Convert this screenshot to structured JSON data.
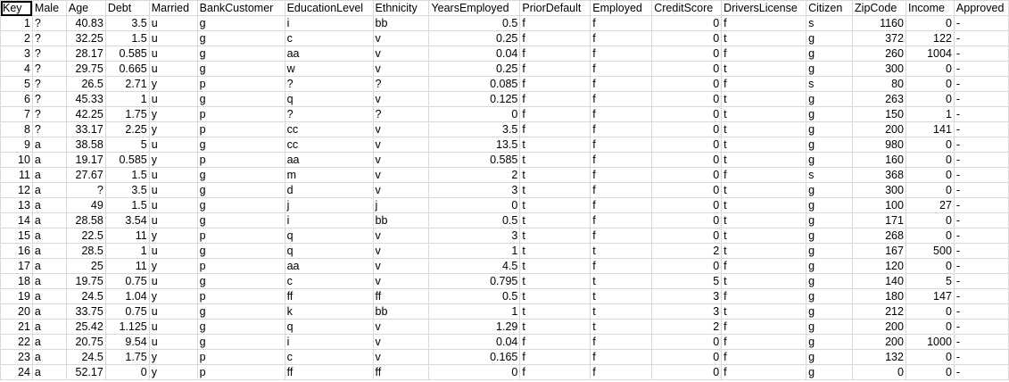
{
  "sheet": {
    "headers": [
      "Key",
      "Male",
      "Age",
      "Debt",
      "Married",
      "BankCustomer",
      "EducationLevel",
      "Ethnicity",
      "YearsEmployed",
      "PriorDefault",
      "Employed",
      "CreditScore",
      "DriversLicense",
      "Citizen",
      "ZipCode",
      "Income",
      "Approved"
    ],
    "numeric_columns": [
      0,
      2,
      3,
      8,
      11,
      14,
      15
    ],
    "rows": [
      [
        "1",
        "?",
        "40.83",
        "3.5",
        "u",
        "g",
        "i",
        "bb",
        "0.5",
        "f",
        "f",
        "0",
        "f",
        "s",
        "1160",
        "0",
        "-"
      ],
      [
        "2",
        "?",
        "32.25",
        "1.5",
        "u",
        "g",
        "c",
        "v",
        "0.25",
        "f",
        "f",
        "0",
        "t",
        "g",
        "372",
        "122",
        "-"
      ],
      [
        "3",
        "?",
        "28.17",
        "0.585",
        "u",
        "g",
        "aa",
        "v",
        "0.04",
        "f",
        "f",
        "0",
        "f",
        "g",
        "260",
        "1004",
        "-"
      ],
      [
        "4",
        "?",
        "29.75",
        "0.665",
        "u",
        "g",
        "w",
        "v",
        "0.25",
        "f",
        "f",
        "0",
        "t",
        "g",
        "300",
        "0",
        "-"
      ],
      [
        "5",
        "?",
        "26.5",
        "2.71",
        "y",
        "p",
        "?",
        "?",
        "0.085",
        "f",
        "f",
        "0",
        "f",
        "s",
        "80",
        "0",
        "-"
      ],
      [
        "6",
        "?",
        "45.33",
        "1",
        "u",
        "g",
        "q",
        "v",
        "0.125",
        "f",
        "f",
        "0",
        "t",
        "g",
        "263",
        "0",
        "-"
      ],
      [
        "7",
        "?",
        "42.25",
        "1.75",
        "y",
        "p",
        "?",
        "?",
        "0",
        "f",
        "f",
        "0",
        "t",
        "g",
        "150",
        "1",
        "-"
      ],
      [
        "8",
        "?",
        "33.17",
        "2.25",
        "y",
        "p",
        "cc",
        "v",
        "3.5",
        "f",
        "f",
        "0",
        "t",
        "g",
        "200",
        "141",
        "-"
      ],
      [
        "9",
        "a",
        "38.58",
        "5",
        "u",
        "g",
        "cc",
        "v",
        "13.5",
        "t",
        "f",
        "0",
        "t",
        "g",
        "980",
        "0",
        "-"
      ],
      [
        "10",
        "a",
        "19.17",
        "0.585",
        "y",
        "p",
        "aa",
        "v",
        "0.585",
        "t",
        "f",
        "0",
        "t",
        "g",
        "160",
        "0",
        "-"
      ],
      [
        "11",
        "a",
        "27.67",
        "1.5",
        "u",
        "g",
        "m",
        "v",
        "2",
        "t",
        "f",
        "0",
        "f",
        "s",
        "368",
        "0",
        "-"
      ],
      [
        "12",
        "a",
        "?",
        "3.5",
        "u",
        "g",
        "d",
        "v",
        "3",
        "t",
        "f",
        "0",
        "t",
        "g",
        "300",
        "0",
        "-"
      ],
      [
        "13",
        "a",
        "49",
        "1.5",
        "u",
        "g",
        "j",
        "j",
        "0",
        "t",
        "f",
        "0",
        "t",
        "g",
        "100",
        "27",
        "-"
      ],
      [
        "14",
        "a",
        "28.58",
        "3.54",
        "u",
        "g",
        "i",
        "bb",
        "0.5",
        "t",
        "f",
        "0",
        "t",
        "g",
        "171",
        "0",
        "-"
      ],
      [
        "15",
        "a",
        "22.5",
        "11",
        "y",
        "p",
        "q",
        "v",
        "3",
        "t",
        "f",
        "0",
        "t",
        "g",
        "268",
        "0",
        "-"
      ],
      [
        "16",
        "a",
        "28.5",
        "1",
        "u",
        "g",
        "q",
        "v",
        "1",
        "t",
        "t",
        "2",
        "t",
        "g",
        "167",
        "500",
        "-"
      ],
      [
        "17",
        "a",
        "25",
        "11",
        "y",
        "p",
        "aa",
        "v",
        "4.5",
        "t",
        "f",
        "0",
        "f",
        "g",
        "120",
        "0",
        "-"
      ],
      [
        "18",
        "a",
        "19.75",
        "0.75",
        "u",
        "g",
        "c",
        "v",
        "0.795",
        "t",
        "t",
        "5",
        "t",
        "g",
        "140",
        "5",
        "-"
      ],
      [
        "19",
        "a",
        "24.5",
        "1.04",
        "y",
        "p",
        "ff",
        "ff",
        "0.5",
        "t",
        "t",
        "3",
        "f",
        "g",
        "180",
        "147",
        "-"
      ],
      [
        "20",
        "a",
        "33.75",
        "0.75",
        "u",
        "g",
        "k",
        "bb",
        "1",
        "t",
        "t",
        "3",
        "t",
        "g",
        "212",
        "0",
        "-"
      ],
      [
        "21",
        "a",
        "25.42",
        "1.125",
        "u",
        "g",
        "q",
        "v",
        "1.29",
        "t",
        "t",
        "2",
        "f",
        "g",
        "200",
        "0",
        "-"
      ],
      [
        "22",
        "a",
        "20.75",
        "9.54",
        "u",
        "g",
        "i",
        "v",
        "0.04",
        "f",
        "f",
        "0",
        "f",
        "g",
        "200",
        "1000",
        "-"
      ],
      [
        "23",
        "a",
        "24.5",
        "1.75",
        "y",
        "p",
        "c",
        "v",
        "0.165",
        "f",
        "f",
        "0",
        "f",
        "g",
        "132",
        "0",
        "-"
      ],
      [
        "24",
        "a",
        "52.17",
        "0",
        "y",
        "p",
        "ff",
        "ff",
        "0",
        "f",
        "f",
        "0",
        "f",
        "g",
        "0",
        "0",
        "-"
      ]
    ]
  }
}
